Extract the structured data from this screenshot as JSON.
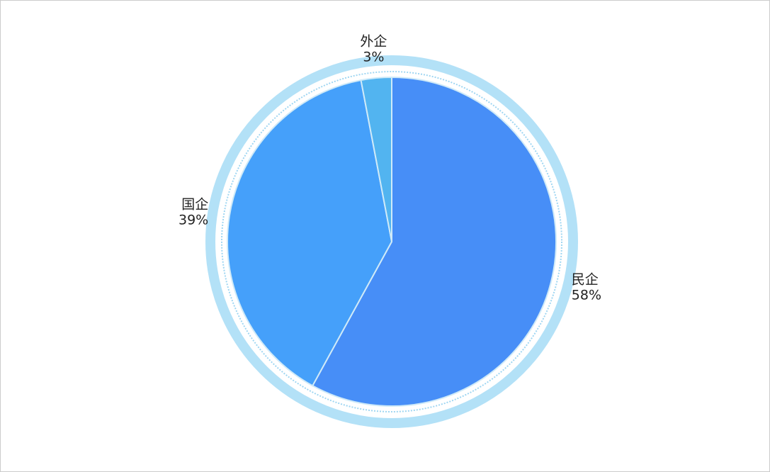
{
  "chart_data": {
    "type": "pie",
    "categories": [
      "民企",
      "国企",
      "外企"
    ],
    "values": [
      58,
      39,
      3
    ],
    "value_labels": [
      "58%",
      "39%",
      "3%"
    ],
    "colors": [
      "#478ef7",
      "#45a0fa",
      "#52b4f0"
    ]
  }
}
